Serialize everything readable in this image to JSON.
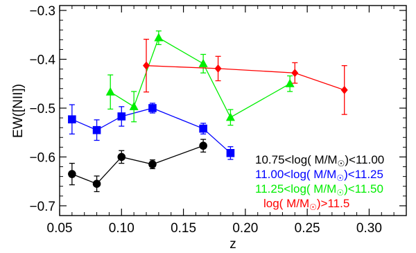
{
  "chart_data": {
    "type": "line",
    "xlabel": "z",
    "ylabel": "EW([NII])",
    "xlim": [
      0.05,
      0.33
    ],
    "ylim": [
      -0.72,
      -0.29
    ],
    "xticks": [
      0.05,
      0.1,
      0.15,
      0.2,
      0.25,
      0.3
    ],
    "xtick_labels": [
      "0.05",
      "0.10",
      "0.15",
      "0.20",
      "0.25",
      "0.30"
    ],
    "yticks": [
      -0.7,
      -0.6,
      -0.5,
      -0.4,
      -0.3
    ],
    "ytick_labels": [
      "−0.7",
      "−0.6",
      "−0.5",
      "−0.4",
      "−0.3"
    ],
    "grid": false,
    "legend_placement": "bottom-right",
    "series": [
      {
        "name": "10.75<log( M/M☉)<11.00",
        "legend_parts": [
          "10.75<log( M/M",
          "☉",
          ")<11.00"
        ],
        "color": "#000000",
        "marker": "circle",
        "x": [
          0.06,
          0.08,
          0.1,
          0.125,
          0.166
        ],
        "y": [
          -0.635,
          -0.655,
          -0.6,
          -0.615,
          -0.577
        ],
        "err": [
          0.022,
          0.016,
          0.013,
          0.009,
          0.013
        ]
      },
      {
        "name": "11.00<log( M/M☉)<11.25",
        "legend_parts": [
          "11.00<log( M/M",
          "☉",
          ")<11.25"
        ],
        "color": "#0000ff",
        "marker": "square",
        "x": [
          0.06,
          0.08,
          0.1,
          0.125,
          0.166,
          0.188
        ],
        "y": [
          -0.523,
          -0.545,
          -0.517,
          -0.5,
          -0.542,
          -0.592
        ],
        "err": [
          0.03,
          0.021,
          0.02,
          0.01,
          0.011,
          0.013
        ]
      },
      {
        "name": "11.25<log( M/M☉)<11.50",
        "legend_parts": [
          "11.25<log( M/M",
          "☉",
          ")<11.50"
        ],
        "color": "#00ee00",
        "marker": "triangle",
        "x": [
          0.091,
          0.11,
          0.13,
          0.166,
          0.188,
          0.236
        ],
        "y": [
          -0.467,
          -0.497,
          -0.356,
          -0.409,
          -0.519,
          -0.45
        ],
        "err": [
          0.035,
          0.031,
          0.014,
          0.019,
          0.016,
          0.016
        ]
      },
      {
        "name": "log( M/M☉)>11.5",
        "legend_parts": [
          "log( M/M",
          "☉",
          ")>11.5"
        ],
        "color": "#ff0000",
        "marker": "diamond",
        "x": [
          0.12,
          0.178,
          0.24,
          0.28
        ],
        "y": [
          -0.413,
          -0.419,
          -0.428,
          -0.463
        ],
        "err": [
          0.054,
          0.025,
          0.021,
          0.05
        ]
      }
    ]
  }
}
